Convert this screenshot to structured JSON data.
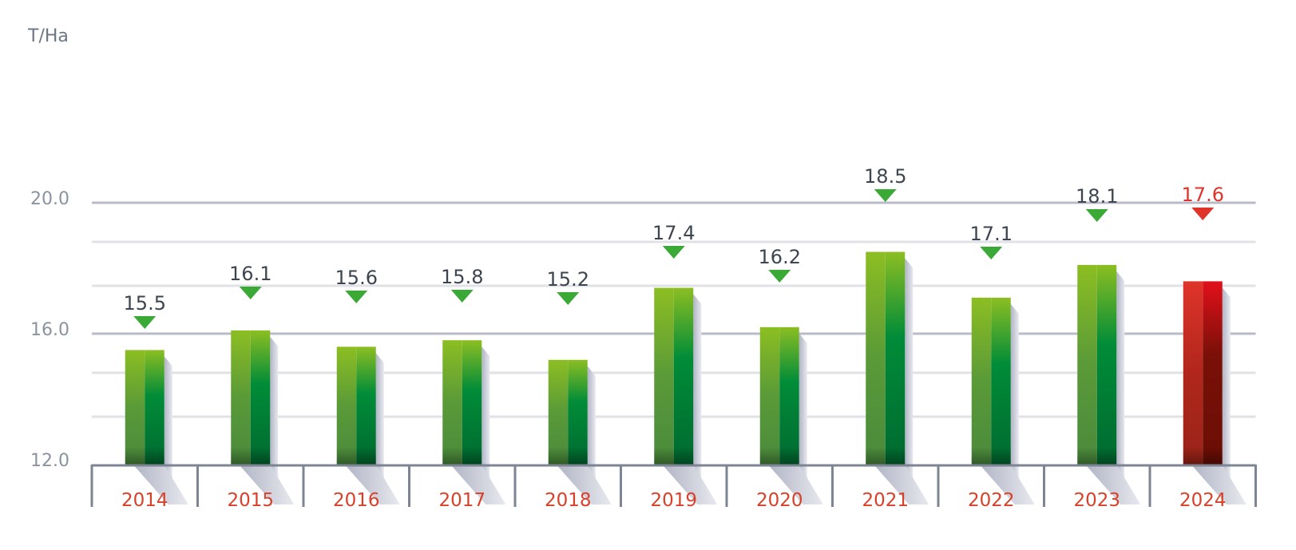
{
  "chart_data": {
    "type": "bar",
    "unit_label": "T/Ha",
    "categories": [
      "2014",
      "2015",
      "2016",
      "2017",
      "2018",
      "2019",
      "2020",
      "2021",
      "2022",
      "2023",
      "2024"
    ],
    "values": [
      15.5,
      16.1,
      15.6,
      15.8,
      15.2,
      17.4,
      16.2,
      18.5,
      17.1,
      18.1,
      17.6
    ],
    "value_labels": [
      "15.5",
      "16.1",
      "15.6",
      "15.8",
      "15.2",
      "17.4",
      "16.2",
      "18.5",
      "17.1",
      "18.1",
      "17.6"
    ],
    "highlight_index": 10,
    "ylim": [
      12.0,
      20.0
    ],
    "yticks": [
      12.0,
      16.0,
      20.0
    ],
    "ytick_labels": [
      "12.0",
      "16.0",
      "20.0"
    ],
    "grid": true,
    "colors": {
      "bar_light_top": "#8cbe22",
      "bar_light_bottom": "#4a8a3c",
      "bar_dark_mid": "#008c38",
      "bar_dark_bottom": "#006a30",
      "highlight_light": "#e0342a",
      "highlight_dark": "#6a0e06",
      "marker": "#3aa936",
      "highlight_marker": "#e0342a",
      "year_label": "#d9402a",
      "value_label": "#3d4650",
      "axis": "#7d8494",
      "grid": "#e1e2e7"
    }
  }
}
